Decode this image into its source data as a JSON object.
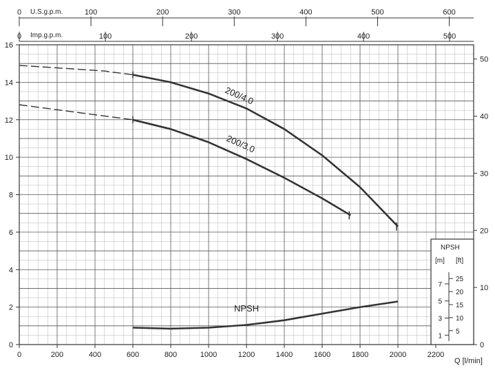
{
  "chart_data": {
    "type": "line",
    "title": "",
    "xlabel": "Q [l/min]",
    "ylabel": "",
    "xlim": [
      0,
      2400
    ],
    "ylim": [
      0,
      16
    ],
    "grid": true,
    "x_ticks": [
      "0",
      "200",
      "400",
      "600",
      "800",
      "1000",
      "1200",
      "1400",
      "1600",
      "1800",
      "2000",
      "2200"
    ],
    "y_left_ticks": [
      "0",
      "2",
      "4",
      "6",
      "8",
      "10",
      "12",
      "14",
      "16"
    ],
    "y_right_ticks": [
      "0",
      "10",
      "20",
      "30",
      "40",
      "50"
    ],
    "top_axes": {
      "usgpm": {
        "label": "U.S.g.p.m.",
        "ticks": [
          "0",
          "100",
          "200",
          "300",
          "400",
          "500",
          "600"
        ]
      },
      "impgpm": {
        "label": "Imp.g.p.m.",
        "ticks": [
          "0",
          "100",
          "200",
          "300",
          "400",
          "500"
        ]
      }
    },
    "npsh_inset": {
      "title": "NPSH",
      "m_label": "[m]",
      "ft_label": "[ft]",
      "m_ticks": [
        "1",
        "3",
        "5",
        "7"
      ],
      "ft_ticks": [
        "5",
        "10",
        "15",
        "20",
        "25"
      ]
    },
    "series": [
      {
        "name": "200/4.0",
        "dashed_x": [
          0,
          150,
          300,
          450,
          600
        ],
        "dashed_y": [
          14.9,
          14.8,
          14.7,
          14.6,
          14.4
        ],
        "x": [
          600,
          800,
          1000,
          1200,
          1400,
          1600,
          1800,
          2000
        ],
        "y": [
          14.4,
          14.0,
          13.4,
          12.6,
          11.5,
          10.1,
          8.4,
          6.3
        ]
      },
      {
        "name": "200/3.0",
        "dashed_x": [
          0,
          150,
          300,
          450,
          600
        ],
        "dashed_y": [
          12.8,
          12.6,
          12.4,
          12.2,
          12.0
        ],
        "x": [
          600,
          800,
          1000,
          1200,
          1400,
          1600,
          1750
        ],
        "y": [
          12.0,
          11.5,
          10.8,
          9.9,
          8.9,
          7.8,
          6.9
        ]
      },
      {
        "name": "NPSH",
        "x": [
          600,
          800,
          1000,
          1200,
          1400,
          1600,
          1800,
          2000
        ],
        "y": [
          0.9,
          0.85,
          0.9,
          1.05,
          1.3,
          1.65,
          2.0,
          2.3
        ]
      }
    ]
  }
}
